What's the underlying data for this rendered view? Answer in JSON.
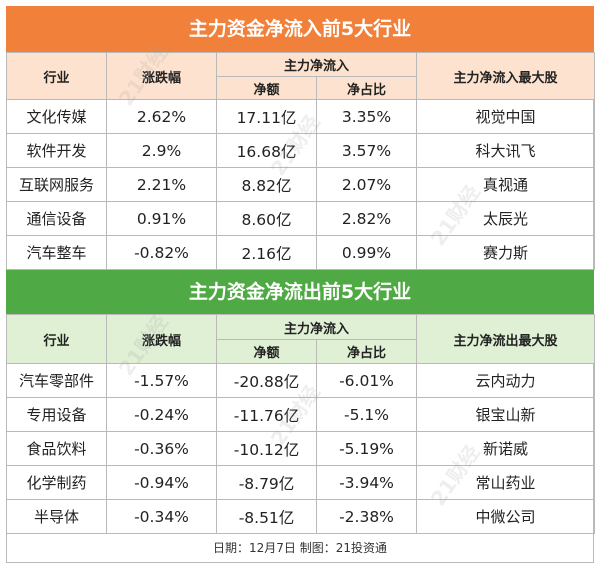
{
  "inflow": {
    "title": "主力资金净流入前5大行业",
    "headers": {
      "industry": "行业",
      "change": "涨跌幅",
      "net_group": "主力净流入",
      "net_amount": "净额",
      "net_ratio": "净占比",
      "top_stock": "主力净流入最大股"
    },
    "rows": [
      {
        "industry": "文化传媒",
        "change": "2.62%",
        "net_amount": "17.11亿",
        "net_ratio": "3.35%",
        "top_stock": "视觉中国"
      },
      {
        "industry": "软件开发",
        "change": "2.9%",
        "net_amount": "16.68亿",
        "net_ratio": "3.57%",
        "top_stock": "科大讯飞"
      },
      {
        "industry": "互联网服务",
        "change": "2.21%",
        "net_amount": "8.82亿",
        "net_ratio": "2.07%",
        "top_stock": "真视通"
      },
      {
        "industry": "通信设备",
        "change": "0.91%",
        "net_amount": "8.60亿",
        "net_ratio": "2.82%",
        "top_stock": "太辰光"
      },
      {
        "industry": "汽车整车",
        "change": "-0.82%",
        "net_amount": "2.16亿",
        "net_ratio": "0.99%",
        "top_stock": "赛力斯"
      }
    ]
  },
  "outflow": {
    "title": "主力资金净流出前5大行业",
    "headers": {
      "industry": "行业",
      "change": "涨跌幅",
      "net_group": "主力净流入",
      "net_amount": "净额",
      "net_ratio": "净占比",
      "top_stock": "主力净流出最大股"
    },
    "rows": [
      {
        "industry": "汽车零部件",
        "change": "-1.57%",
        "net_amount": "-20.88亿",
        "net_ratio": "-6.01%",
        "top_stock": "云内动力"
      },
      {
        "industry": "专用设备",
        "change": "-0.24%",
        "net_amount": "-11.76亿",
        "net_ratio": "-5.1%",
        "top_stock": "银宝山新"
      },
      {
        "industry": "食品饮料",
        "change": "-0.36%",
        "net_amount": "-10.12亿",
        "net_ratio": "-5.19%",
        "top_stock": "新诺威"
      },
      {
        "industry": "化学制药",
        "change": "-0.94%",
        "net_amount": "-8.79亿",
        "net_ratio": "-3.94%",
        "top_stock": "常山药业"
      },
      {
        "industry": "半导体",
        "change": "-0.34%",
        "net_amount": "-8.51亿",
        "net_ratio": "-2.38%",
        "top_stock": "中微公司"
      }
    ]
  },
  "footer": "日期：12月7日 制图：21投资通",
  "watermark": "21财经",
  "colors": {
    "inflow_banner": "#f0803a",
    "inflow_header": "#fde3cf",
    "outflow_banner": "#4fa944",
    "outflow_header": "#dff0d5"
  }
}
